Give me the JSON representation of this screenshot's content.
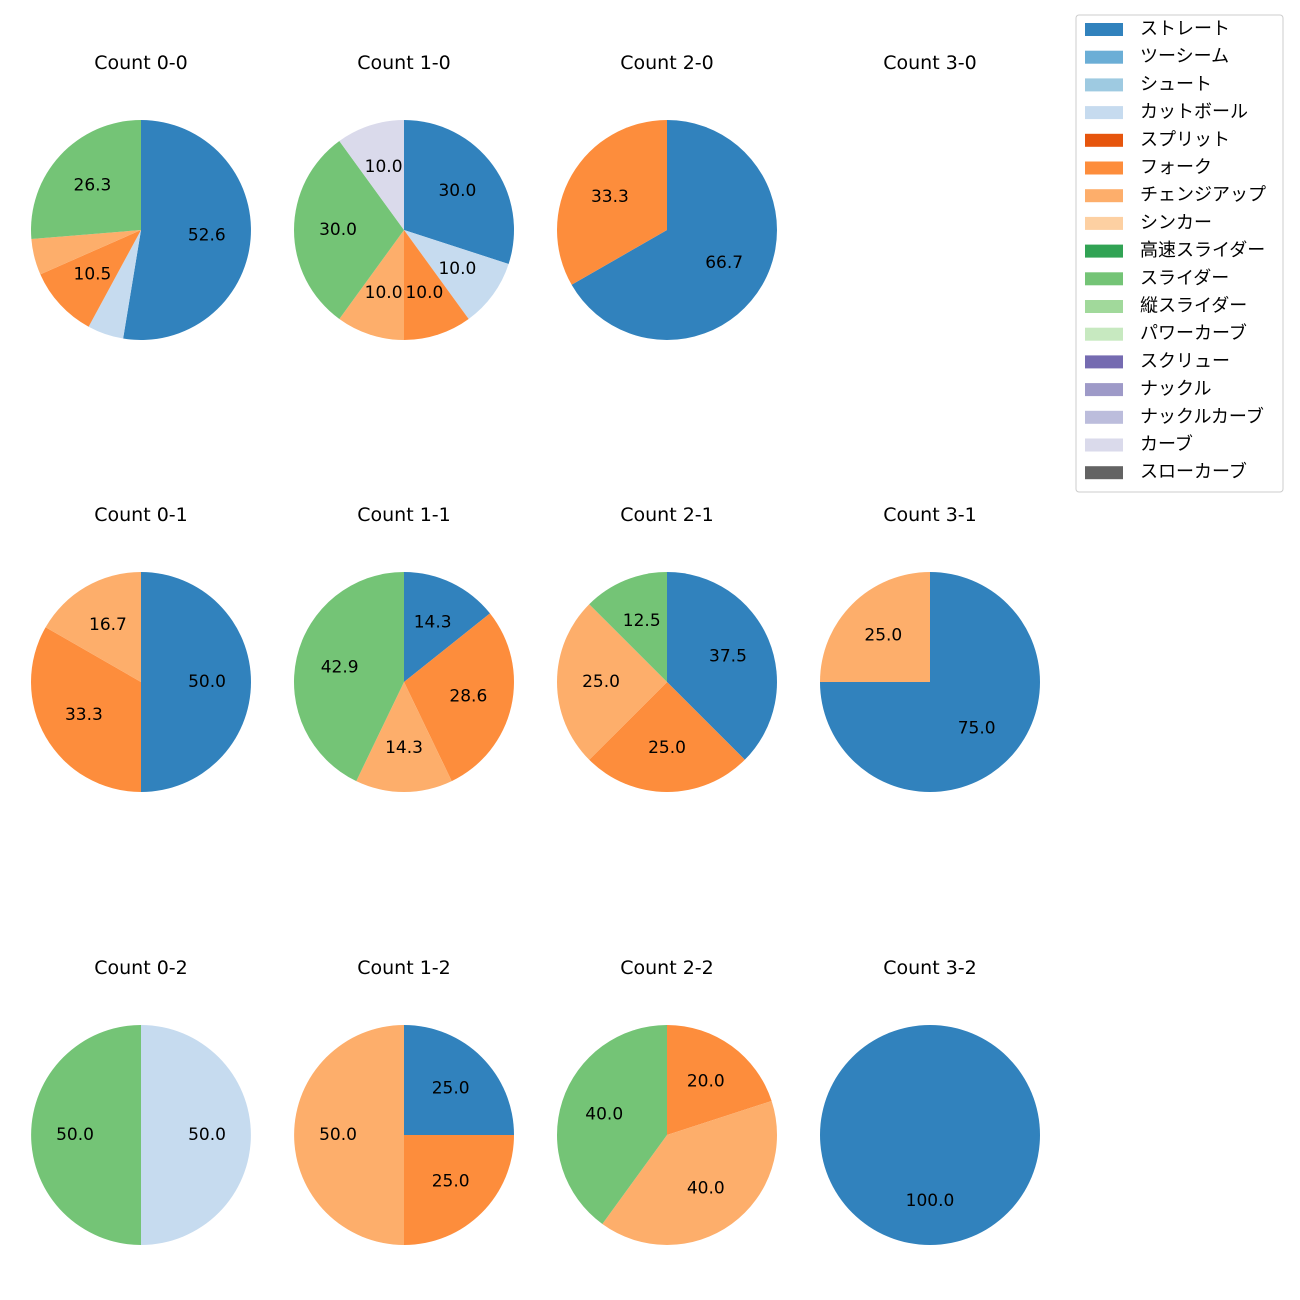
{
  "legend": {
    "placement": "top-right",
    "items": [
      {
        "label": "ストレート",
        "color": "#3182bd"
      },
      {
        "label": "ツーシーム",
        "color": "#6baed6"
      },
      {
        "label": "シュート",
        "color": "#9ecae1"
      },
      {
        "label": "カットボール",
        "color": "#c6dbef"
      },
      {
        "label": "スプリット",
        "color": "#e6550d"
      },
      {
        "label": "フォーク",
        "color": "#fd8d3c"
      },
      {
        "label": "チェンジアップ",
        "color": "#fdae6b"
      },
      {
        "label": "シンカー",
        "color": "#fdd0a2"
      },
      {
        "label": "高速スライダー",
        "color": "#31a354"
      },
      {
        "label": "スライダー",
        "color": "#74c476"
      },
      {
        "label": "縦スライダー",
        "color": "#a1d99b"
      },
      {
        "label": "パワーカーブ",
        "color": "#c7e9c0"
      },
      {
        "label": "スクリュー",
        "color": "#756bb1"
      },
      {
        "label": "ナックル",
        "color": "#9e9ac8"
      },
      {
        "label": "ナックルカーブ",
        "color": "#bcbddc"
      },
      {
        "label": "カーブ",
        "color": "#dadaeb"
      },
      {
        "label": "スローカーブ",
        "color": "#636363"
      }
    ]
  },
  "chart_data": [
    {
      "type": "pie",
      "title": "Count 0-0",
      "slices": [
        {
          "label": "ストレート",
          "value": 52.6,
          "shown": "52.6"
        },
        {
          "label": "カットボール",
          "value": 5.3,
          "shown": ""
        },
        {
          "label": "フォーク",
          "value": 10.5,
          "shown": "10.5"
        },
        {
          "label": "チェンジアップ",
          "value": 5.3,
          "shown": ""
        },
        {
          "label": "スライダー",
          "value": 26.3,
          "shown": "26.3"
        }
      ]
    },
    {
      "type": "pie",
      "title": "Count 1-0",
      "slices": [
        {
          "label": "ストレート",
          "value": 30.0,
          "shown": "30.0"
        },
        {
          "label": "カットボール",
          "value": 10.0,
          "shown": "10.0"
        },
        {
          "label": "フォーク",
          "value": 10.0,
          "shown": "10.0"
        },
        {
          "label": "チェンジアップ",
          "value": 10.0,
          "shown": "10.0"
        },
        {
          "label": "スライダー",
          "value": 30.0,
          "shown": "30.0"
        },
        {
          "label": "カーブ",
          "value": 10.0,
          "shown": "10.0"
        }
      ]
    },
    {
      "type": "pie",
      "title": "Count 2-0",
      "slices": [
        {
          "label": "ストレート",
          "value": 66.7,
          "shown": "66.7"
        },
        {
          "label": "フォーク",
          "value": 33.3,
          "shown": "33.3"
        }
      ]
    },
    {
      "type": "pie",
      "title": "Count 3-0",
      "slices": []
    },
    {
      "type": "pie",
      "title": "Count 0-1",
      "slices": [
        {
          "label": "ストレート",
          "value": 50.0,
          "shown": "50.0"
        },
        {
          "label": "フォーク",
          "value": 33.3,
          "shown": "33.3"
        },
        {
          "label": "チェンジアップ",
          "value": 16.7,
          "shown": "16.7"
        }
      ]
    },
    {
      "type": "pie",
      "title": "Count 1-1",
      "slices": [
        {
          "label": "ストレート",
          "value": 14.3,
          "shown": "14.3"
        },
        {
          "label": "フォーク",
          "value": 28.6,
          "shown": "28.6"
        },
        {
          "label": "チェンジアップ",
          "value": 14.3,
          "shown": "14.3"
        },
        {
          "label": "スライダー",
          "value": 42.9,
          "shown": "42.9"
        }
      ]
    },
    {
      "type": "pie",
      "title": "Count 2-1",
      "slices": [
        {
          "label": "ストレート",
          "value": 37.5,
          "shown": "37.5"
        },
        {
          "label": "フォーク",
          "value": 25.0,
          "shown": "25.0"
        },
        {
          "label": "チェンジアップ",
          "value": 25.0,
          "shown": "25.0"
        },
        {
          "label": "スライダー",
          "value": 12.5,
          "shown": "12.5"
        }
      ]
    },
    {
      "type": "pie",
      "title": "Count 3-1",
      "slices": [
        {
          "label": "ストレート",
          "value": 75.0,
          "shown": "75.0"
        },
        {
          "label": "チェンジアップ",
          "value": 25.0,
          "shown": "25.0"
        }
      ]
    },
    {
      "type": "pie",
      "title": "Count 0-2",
      "slices": [
        {
          "label": "カットボール",
          "value": 50.0,
          "shown": "50.0"
        },
        {
          "label": "スライダー",
          "value": 50.0,
          "shown": "50.0"
        }
      ]
    },
    {
      "type": "pie",
      "title": "Count 1-2",
      "slices": [
        {
          "label": "ストレート",
          "value": 25.0,
          "shown": "25.0"
        },
        {
          "label": "フォーク",
          "value": 25.0,
          "shown": "25.0"
        },
        {
          "label": "チェンジアップ",
          "value": 50.0,
          "shown": "50.0"
        }
      ]
    },
    {
      "type": "pie",
      "title": "Count 2-2",
      "slices": [
        {
          "label": "フォーク",
          "value": 20.0,
          "shown": "20.0"
        },
        {
          "label": "チェンジアップ",
          "value": 40.0,
          "shown": "40.0"
        },
        {
          "label": "スライダー",
          "value": 40.0,
          "shown": "40.0"
        }
      ]
    },
    {
      "type": "pie",
      "title": "Count 3-2",
      "slices": [
        {
          "label": "ストレート",
          "value": 100.0,
          "shown": "100.0"
        }
      ]
    }
  ]
}
